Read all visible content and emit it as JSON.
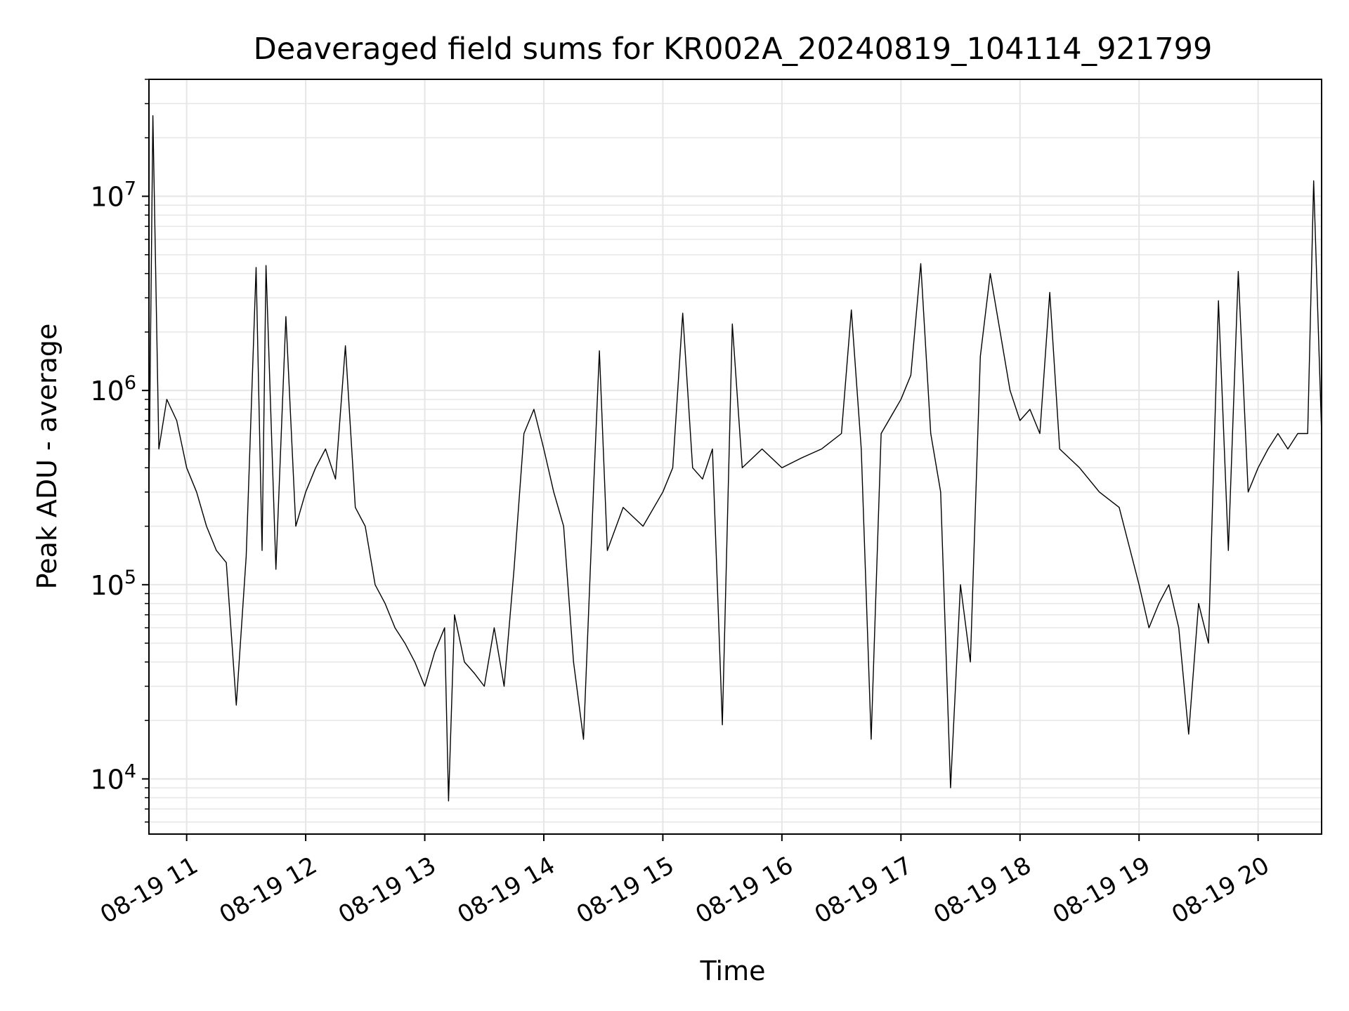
{
  "chart_data": {
    "type": "line",
    "title": "Deaveraged field sums for KR002A_20240819_104114_921799",
    "xlabel": "Time",
    "ylabel": "Peak ADU - average",
    "x_axis": {
      "type": "time",
      "range": [
        "2024-08-19 10:41",
        "2024-08-19 20:32"
      ],
      "ticks": [
        {
          "t": "2024-08-19 11:00",
          "label": "08-19 11"
        },
        {
          "t": "2024-08-19 12:00",
          "label": "08-19 12"
        },
        {
          "t": "2024-08-19 13:00",
          "label": "08-19 13"
        },
        {
          "t": "2024-08-19 14:00",
          "label": "08-19 14"
        },
        {
          "t": "2024-08-19 15:00",
          "label": "08-19 15"
        },
        {
          "t": "2024-08-19 16:00",
          "label": "08-19 16"
        },
        {
          "t": "2024-08-19 17:00",
          "label": "08-19 17"
        },
        {
          "t": "2024-08-19 18:00",
          "label": "08-19 18"
        },
        {
          "t": "2024-08-19 19:00",
          "label": "08-19 19"
        },
        {
          "t": "2024-08-19 20:00",
          "label": "08-19 20"
        }
      ]
    },
    "y_axis": {
      "scale": "log",
      "range": [
        5200,
        40000000
      ],
      "ticks": [
        {
          "value": 10000,
          "base": "10",
          "exp": "4"
        },
        {
          "value": 100000,
          "base": "10",
          "exp": "5"
        },
        {
          "value": 1000000,
          "base": "10",
          "exp": "6"
        },
        {
          "value": 10000000,
          "base": "10",
          "exp": "7"
        }
      ]
    },
    "grid": "major and minor",
    "series": [
      {
        "color": "#000000",
        "points": [
          [
            "2024-08-19 10:41",
            300000
          ],
          [
            "2024-08-19 10:43",
            26000000
          ],
          [
            "2024-08-19 10:46",
            500000
          ],
          [
            "2024-08-19 10:50",
            900000
          ],
          [
            "2024-08-19 10:55",
            700000
          ],
          [
            "2024-08-19 11:00",
            400000
          ],
          [
            "2024-08-19 11:05",
            300000
          ],
          [
            "2024-08-19 11:10",
            200000
          ],
          [
            "2024-08-19 11:15",
            150000
          ],
          [
            "2024-08-19 11:20",
            130000
          ],
          [
            "2024-08-19 11:25",
            24000
          ],
          [
            "2024-08-19 11:30",
            140000
          ],
          [
            "2024-08-19 11:35",
            4300000
          ],
          [
            "2024-08-19 11:38",
            150000
          ],
          [
            "2024-08-19 11:40",
            4400000
          ],
          [
            "2024-08-19 11:45",
            120000
          ],
          [
            "2024-08-19 11:50",
            2400000
          ],
          [
            "2024-08-19 11:55",
            200000
          ],
          [
            "2024-08-19 12:00",
            300000
          ],
          [
            "2024-08-19 12:05",
            400000
          ],
          [
            "2024-08-19 12:10",
            500000
          ],
          [
            "2024-08-19 12:15",
            350000
          ],
          [
            "2024-08-19 12:20",
            1700000
          ],
          [
            "2024-08-19 12:25",
            250000
          ],
          [
            "2024-08-19 12:30",
            200000
          ],
          [
            "2024-08-19 12:35",
            100000
          ],
          [
            "2024-08-19 12:40",
            80000
          ],
          [
            "2024-08-19 12:45",
            60000
          ],
          [
            "2024-08-19 12:50",
            50000
          ],
          [
            "2024-08-19 12:55",
            40000
          ],
          [
            "2024-08-19 13:00",
            30000
          ],
          [
            "2024-08-19 13:05",
            45000
          ],
          [
            "2024-08-19 13:10",
            60000
          ],
          [
            "2024-08-19 13:12",
            7700
          ],
          [
            "2024-08-19 13:15",
            70000
          ],
          [
            "2024-08-19 13:20",
            40000
          ],
          [
            "2024-08-19 13:25",
            35000
          ],
          [
            "2024-08-19 13:30",
            30000
          ],
          [
            "2024-08-19 13:35",
            60000
          ],
          [
            "2024-08-19 13:40",
            30000
          ],
          [
            "2024-08-19 13:45",
            120000
          ],
          [
            "2024-08-19 13:50",
            600000
          ],
          [
            "2024-08-19 13:55",
            800000
          ],
          [
            "2024-08-19 14:00",
            500000
          ],
          [
            "2024-08-19 14:05",
            300000
          ],
          [
            "2024-08-19 14:10",
            200000
          ],
          [
            "2024-08-19 14:15",
            40000
          ],
          [
            "2024-08-19 14:20",
            16000
          ],
          [
            "2024-08-19 14:25",
            300000
          ],
          [
            "2024-08-19 14:28",
            1600000
          ],
          [
            "2024-08-19 14:32",
            150000
          ],
          [
            "2024-08-19 14:40",
            250000
          ],
          [
            "2024-08-19 14:50",
            200000
          ],
          [
            "2024-08-19 15:00",
            300000
          ],
          [
            "2024-08-19 15:05",
            400000
          ],
          [
            "2024-08-19 15:10",
            2500000
          ],
          [
            "2024-08-19 15:15",
            400000
          ],
          [
            "2024-08-19 15:20",
            350000
          ],
          [
            "2024-08-19 15:25",
            500000
          ],
          [
            "2024-08-19 15:30",
            19000
          ],
          [
            "2024-08-19 15:35",
            2200000
          ],
          [
            "2024-08-19 15:40",
            400000
          ],
          [
            "2024-08-19 15:50",
            500000
          ],
          [
            "2024-08-19 16:00",
            400000
          ],
          [
            "2024-08-19 16:10",
            450000
          ],
          [
            "2024-08-19 16:20",
            500000
          ],
          [
            "2024-08-19 16:30",
            600000
          ],
          [
            "2024-08-19 16:35",
            2600000
          ],
          [
            "2024-08-19 16:40",
            500000
          ],
          [
            "2024-08-19 16:45",
            16000
          ],
          [
            "2024-08-19 16:50",
            600000
          ],
          [
            "2024-08-19 17:00",
            900000
          ],
          [
            "2024-08-19 17:05",
            1200000
          ],
          [
            "2024-08-19 17:10",
            4500000
          ],
          [
            "2024-08-19 17:15",
            600000
          ],
          [
            "2024-08-19 17:20",
            300000
          ],
          [
            "2024-08-19 17:25",
            9000
          ],
          [
            "2024-08-19 17:30",
            100000
          ],
          [
            "2024-08-19 17:35",
            40000
          ],
          [
            "2024-08-19 17:40",
            1500000
          ],
          [
            "2024-08-19 17:45",
            4000000
          ],
          [
            "2024-08-19 17:50",
            2000000
          ],
          [
            "2024-08-19 17:55",
            1000000
          ],
          [
            "2024-08-19 18:00",
            700000
          ],
          [
            "2024-08-19 18:05",
            800000
          ],
          [
            "2024-08-19 18:10",
            600000
          ],
          [
            "2024-08-19 18:15",
            3200000
          ],
          [
            "2024-08-19 18:20",
            500000
          ],
          [
            "2024-08-19 18:30",
            400000
          ],
          [
            "2024-08-19 18:40",
            300000
          ],
          [
            "2024-08-19 18:50",
            250000
          ],
          [
            "2024-08-19 19:00",
            100000
          ],
          [
            "2024-08-19 19:05",
            60000
          ],
          [
            "2024-08-19 19:10",
            80000
          ],
          [
            "2024-08-19 19:15",
            100000
          ],
          [
            "2024-08-19 19:20",
            60000
          ],
          [
            "2024-08-19 19:25",
            17000
          ],
          [
            "2024-08-19 19:30",
            80000
          ],
          [
            "2024-08-19 19:35",
            50000
          ],
          [
            "2024-08-19 19:40",
            2900000
          ],
          [
            "2024-08-19 19:45",
            150000
          ],
          [
            "2024-08-19 19:50",
            4100000
          ],
          [
            "2024-08-19 19:55",
            300000
          ],
          [
            "2024-08-19 20:00",
            400000
          ],
          [
            "2024-08-19 20:05",
            500000
          ],
          [
            "2024-08-19 20:10",
            600000
          ],
          [
            "2024-08-19 20:15",
            500000
          ],
          [
            "2024-08-19 20:20",
            600000
          ],
          [
            "2024-08-19 20:25",
            600000
          ],
          [
            "2024-08-19 20:28",
            12000000
          ],
          [
            "2024-08-19 20:32",
            600000
          ]
        ]
      }
    ]
  }
}
